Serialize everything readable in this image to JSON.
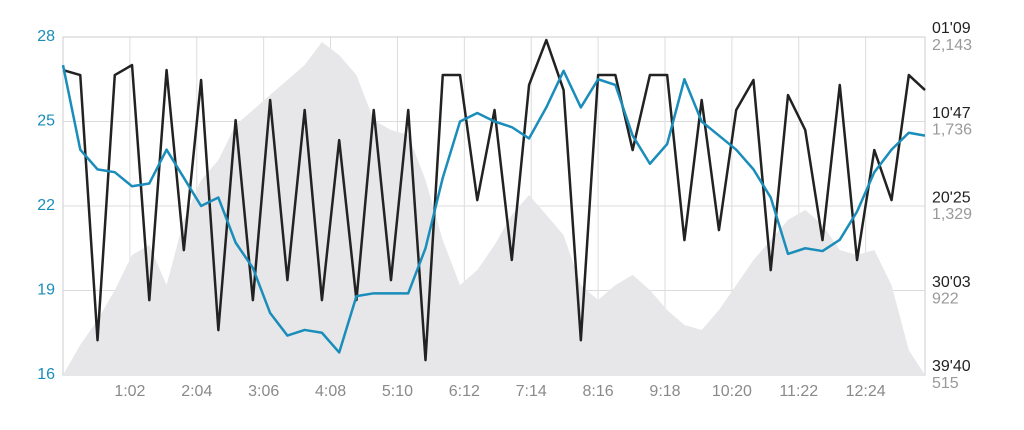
{
  "chart_data": {
    "type": "line",
    "x": [
      0,
      16,
      32,
      48,
      64,
      80,
      96,
      112,
      128,
      144,
      160,
      176,
      192,
      208,
      224,
      240,
      256,
      272,
      288,
      304,
      320,
      336,
      352,
      368,
      384,
      400,
      416,
      432,
      448,
      464,
      480,
      496,
      512,
      528,
      544,
      560,
      576,
      592,
      608,
      624,
      640,
      656,
      672,
      688,
      704,
      720,
      736,
      752,
      768,
      784,
      799
    ],
    "xlim": [
      0,
      799
    ],
    "xticks": [
      {
        "value": 62,
        "label": "1:02"
      },
      {
        "value": 124,
        "label": "2:04"
      },
      {
        "value": 186,
        "label": "3:06"
      },
      {
        "value": 248,
        "label": "4:08"
      },
      {
        "value": 310,
        "label": "5:10"
      },
      {
        "value": 372,
        "label": "6:12"
      },
      {
        "value": 434,
        "label": "7:14"
      },
      {
        "value": 496,
        "label": "8:16"
      },
      {
        "value": 558,
        "label": "9:18"
      },
      {
        "value": 620,
        "label": "10:20"
      },
      {
        "value": 682,
        "label": "11:22"
      },
      {
        "value": 744,
        "label": "12:24"
      }
    ],
    "ylim": [
      16,
      28
    ],
    "yticks": [
      16,
      19,
      22,
      25,
      28
    ],
    "y2lim": [
      69,
      2380
    ],
    "y2_reversed": true,
    "y2ticks": [
      {
        "value": 69,
        "label": "01'09"
      },
      {
        "value": 647,
        "label": "10'47"
      },
      {
        "value": 1225,
        "label": "20'25"
      },
      {
        "value": 1803,
        "label": "30'03"
      },
      {
        "value": 2380,
        "label": "39'40"
      }
    ],
    "y3lim": [
      515,
      2143
    ],
    "y3ticks": [
      {
        "value": 2143,
        "label": "2,143"
      },
      {
        "value": 1736,
        "label": "1,736"
      },
      {
        "value": 1329,
        "label": "1,329"
      },
      {
        "value": 922,
        "label": "922"
      },
      {
        "value": 515,
        "label": "515"
      }
    ],
    "grid": true,
    "series": [
      {
        "axis": "y3",
        "kind": "area",
        "color": "#e7e7e9",
        "values": [
          515,
          660,
          780,
          924,
          1093,
          1141,
          948,
          1262,
          1454,
          1550,
          1719,
          1791,
          1864,
          1936,
          2008,
          2119,
          2056,
          1960,
          1743,
          1695,
          1671,
          1454,
          1165,
          948,
          1021,
          1141,
          1286,
          1382,
          1286,
          1189,
          948,
          876,
          948,
          997,
          924,
          828,
          756,
          732,
          828,
          948,
          1069,
          1165,
          1262,
          1310,
          1238,
          1117,
          1093,
          1117,
          948,
          635,
          515
        ]
      },
      {
        "axis": "y2",
        "kind": "line",
        "color": "#222222",
        "values": [
          295,
          329,
          2142,
          329,
          261,
          1868,
          295,
          1526,
          363,
          2073,
          637,
          1868,
          500,
          1731,
          568,
          1868,
          774,
          1868,
          568,
          1731,
          568,
          2278,
          329,
          329,
          1184,
          568,
          1594,
          397,
          90,
          432,
          2142,
          329,
          329,
          842,
          329,
          329,
          1458,
          500,
          1389,
          568,
          363,
          1663,
          466,
          705,
          1458,
          397,
          1594,
          842,
          1184,
          329,
          432
        ]
      },
      {
        "axis": "y",
        "kind": "line",
        "color": "#1a8dba",
        "values": [
          27,
          24,
          23.3,
          23.2,
          22.7,
          22.8,
          24,
          23,
          22,
          22.3,
          20.7,
          19.8,
          18.2,
          17.4,
          17.6,
          17.5,
          16.8,
          18.8,
          18.9,
          18.9,
          18.9,
          20.5,
          23,
          25,
          25.3,
          25,
          24.8,
          24.4,
          25.5,
          26.8,
          25.5,
          26.5,
          26.3,
          24.5,
          23.5,
          24.2,
          26.5,
          25,
          24.5,
          24,
          23.3,
          22.3,
          20.3,
          20.5,
          20.4,
          20.8,
          21.8,
          23.2,
          24,
          24.6,
          24.5
        ]
      }
    ]
  }
}
